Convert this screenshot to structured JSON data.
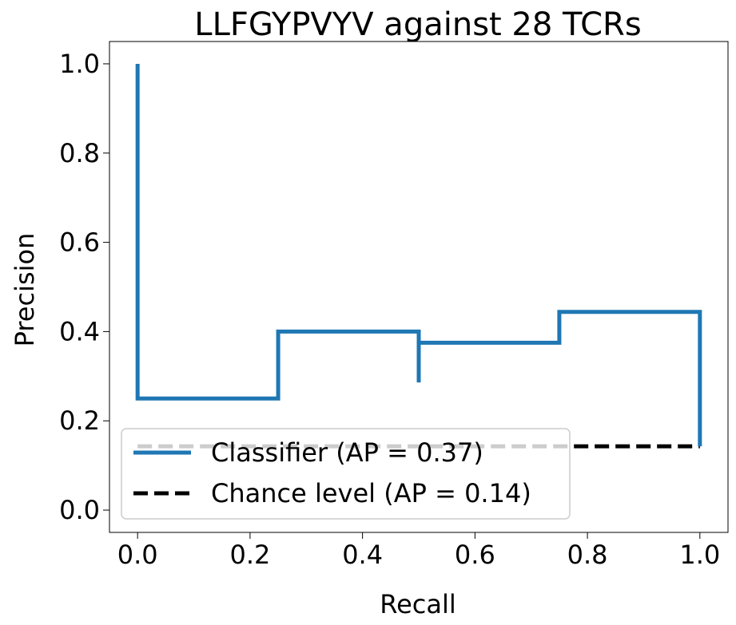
{
  "chart_data": {
    "type": "line",
    "title": "LLFGYPVYV against 28 TCRs",
    "xlabel": "Recall",
    "ylabel": "Precision",
    "xlim": [
      -0.05,
      1.05
    ],
    "ylim": [
      -0.05,
      1.05
    ],
    "xticks": [
      0.0,
      0.2,
      0.4,
      0.6,
      0.8,
      1.0
    ],
    "xtick_labels": [
      "0.0",
      "0.2",
      "0.4",
      "0.6",
      "0.8",
      "1.0"
    ],
    "yticks": [
      0.0,
      0.2,
      0.4,
      0.6,
      0.8,
      1.0
    ],
    "ytick_labels": [
      "0.0",
      "0.2",
      "0.4",
      "0.6",
      "0.8",
      "1.0"
    ],
    "grid": false,
    "legend_position": "lower-left",
    "series": [
      {
        "name": "Classifier (AP = 0.37)",
        "color": "#1f77b4",
        "style": "steps-post",
        "x": [
          1.0,
          1.0,
          0.75,
          0.75,
          0.5,
          0.5,
          0.5,
          0.25,
          0.25,
          0.0,
          0.0
        ],
        "y": [
          0.143,
          0.444,
          0.444,
          0.375,
          0.375,
          0.286,
          0.4,
          0.4,
          0.25,
          0.25,
          1.0
        ]
      },
      {
        "name": "Chance level (AP = 0.14)",
        "color": "#000000",
        "style": "dashed",
        "x": [
          0.0,
          1.0
        ],
        "y": [
          0.143,
          0.143
        ]
      }
    ]
  }
}
